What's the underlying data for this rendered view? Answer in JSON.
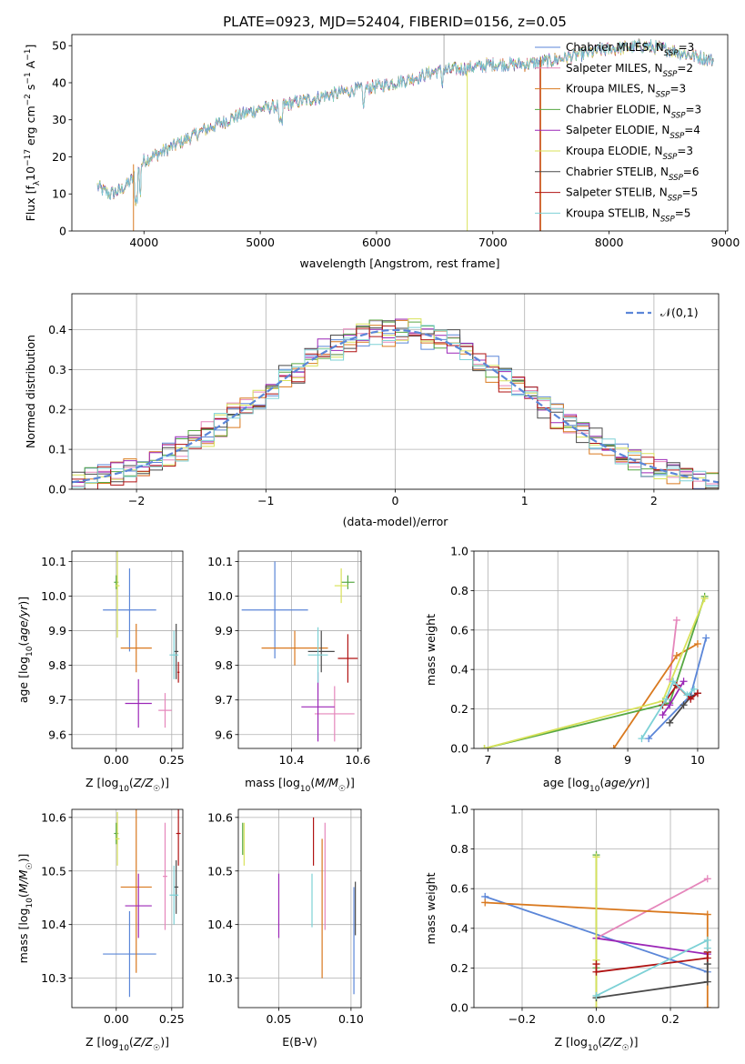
{
  "figure_title": "PLATE=0923, MJD=52404, FIBERID=0156, z=0.05",
  "models": [
    {
      "name": "Chabrier MILES",
      "nssp": "3",
      "color": "#5b86d8"
    },
    {
      "name": "Salpeter MILES",
      "nssp": "2",
      "color": "#e586bb"
    },
    {
      "name": "Kroupa MILES",
      "nssp": "3",
      "color": "#d9791f"
    },
    {
      "name": "Chabrier ELODIE",
      "nssp": "3",
      "color": "#57a843"
    },
    {
      "name": "Salpeter ELODIE",
      "nssp": "4",
      "color": "#9c27b7"
    },
    {
      "name": "Kroupa ELODIE",
      "nssp": "3",
      "color": "#d8e25a"
    },
    {
      "name": "Chabrier STELIB",
      "nssp": "6",
      "color": "#4a4a4a"
    },
    {
      "name": "Salpeter STELIB",
      "nssp": "5",
      "color": "#b01212"
    },
    {
      "name": "Kroupa STELIB",
      "nssp": "5",
      "color": "#7dd1d6"
    }
  ],
  "chart_data": [
    {
      "id": "spectrum",
      "type": "line",
      "title": "PLATE=0923, MJD=52404, FIBERID=0156, z=0.05",
      "xlabel": "wavelength [Angstrom, rest frame]",
      "ylabel": "Flux [f_λ 10^-17 erg cm^-2 s^-1 A^-1]",
      "xlim": [
        3380,
        9020
      ],
      "ylim": [
        0,
        53
      ],
      "xticks": [
        4000,
        5000,
        6000,
        7000,
        8000,
        9000
      ],
      "yticks": [
        0,
        10,
        20,
        30,
        40,
        50
      ],
      "legend": "upper-right",
      "grid": false,
      "continuum_x": [
        3600,
        3700,
        3800,
        3900,
        4000,
        4200,
        4500,
        4800,
        5000,
        5200,
        5500,
        5800,
        6000,
        6300,
        6500,
        6800,
        7000,
        7300,
        7500,
        7800,
        8000,
        8300,
        8500,
        8900
      ],
      "continuum_y": [
        12,
        10,
        11,
        14,
        19,
        22,
        27,
        31,
        33,
        34,
        36,
        38,
        39,
        41,
        43,
        44,
        45,
        45,
        46,
        48,
        49,
        50,
        49,
        46
      ]
    },
    {
      "id": "residuals",
      "type": "histogram",
      "xlabel": "(data-model)/error",
      "ylabel": "Normed distribution",
      "xlim": [
        -2.5,
        2.5
      ],
      "ylim": [
        0,
        0.49
      ],
      "xticks": [
        -2,
        -1,
        0,
        1,
        2
      ],
      "yticks": [
        0.0,
        0.1,
        0.2,
        0.3,
        0.4
      ],
      "legend": "upper-right",
      "legend_label": "𝒩(0,1)",
      "grid": true,
      "gaussian": {
        "mean": 0,
        "sigma": 1,
        "color": "#5b86d8"
      }
    },
    {
      "id": "age-vs-z",
      "type": "errorbar",
      "xlabel": "Z [log10(Z/Z☉)]",
      "ylabel": "age [log10(age/yr)]",
      "xlim": [
        -0.2,
        0.3
      ],
      "ylim": [
        9.56,
        10.13
      ],
      "xticks": [
        0.0,
        0.25
      ],
      "yticks": [
        9.6,
        9.7,
        9.8,
        9.9,
        10.0,
        10.1
      ],
      "grid": true,
      "points": [
        {
          "model": 0,
          "x": 0.06,
          "xerr": 0.12,
          "y": 9.96,
          "yerr": 0.12
        },
        {
          "model": 1,
          "x": 0.22,
          "xerr": 0.03,
          "y": 9.67,
          "yerr": 0.05
        },
        {
          "model": 2,
          "x": 0.09,
          "xerr": 0.07,
          "y": 9.85,
          "yerr": 0.07
        },
        {
          "model": 3,
          "x": 0.0,
          "xerr": 0.01,
          "y": 10.04,
          "yerr": 0.02
        },
        {
          "model": 4,
          "x": 0.1,
          "xerr": 0.06,
          "y": 9.69,
          "yerr": 0.07
        },
        {
          "model": 5,
          "x": 0.005,
          "xerr": 0.01,
          "y": 10.03,
          "yerr": 0.15
        },
        {
          "model": 6,
          "x": 0.27,
          "xerr": 0.01,
          "y": 9.84,
          "yerr": 0.08
        },
        {
          "model": 7,
          "x": 0.28,
          "xerr": 0.005,
          "y": 9.78,
          "yerr": 0.03
        },
        {
          "model": 8,
          "x": 0.26,
          "xerr": 0.02,
          "y": 9.83,
          "yerr": 0.07
        }
      ]
    },
    {
      "id": "age-vs-mass",
      "type": "errorbar",
      "xlabel": "mass [log10(M/M☉)]",
      "ylabel": "",
      "xlim": [
        10.24,
        10.61
      ],
      "ylim": [
        9.56,
        10.13
      ],
      "xticks": [
        10.4,
        10.6
      ],
      "yticks": [
        9.6,
        9.7,
        9.8,
        9.9,
        10.0,
        10.1
      ],
      "grid": true,
      "points": [
        {
          "model": 0,
          "x": 10.35,
          "xerr": 0.1,
          "y": 9.96,
          "yerr": 0.14
        },
        {
          "model": 1,
          "x": 10.53,
          "xerr": 0.06,
          "y": 9.66,
          "yerr": 0.08
        },
        {
          "model": 2,
          "x": 10.41,
          "xerr": 0.1,
          "y": 9.85,
          "yerr": 0.05
        },
        {
          "model": 3,
          "x": 10.57,
          "xerr": 0.02,
          "y": 10.04,
          "yerr": 0.02
        },
        {
          "model": 4,
          "x": 10.48,
          "xerr": 0.05,
          "y": 9.68,
          "yerr": 0.1
        },
        {
          "model": 5,
          "x": 10.55,
          "xerr": 0.02,
          "y": 10.03,
          "yerr": 0.05
        },
        {
          "model": 6,
          "x": 10.49,
          "xerr": 0.04,
          "y": 9.84,
          "yerr": 0.06
        },
        {
          "model": 7,
          "x": 10.57,
          "xerr": 0.03,
          "y": 9.82,
          "yerr": 0.07
        },
        {
          "model": 8,
          "x": 10.48,
          "xerr": 0.03,
          "y": 9.83,
          "yerr": 0.08
        }
      ]
    },
    {
      "id": "mass-weight-vs-age",
      "type": "line",
      "xlabel": "age [log10(age/yr)]",
      "ylabel": "mass weight",
      "xlim": [
        6.8,
        10.3
      ],
      "ylim": [
        0,
        1
      ],
      "xticks": [
        7,
        8,
        9,
        10
      ],
      "yticks": [
        0.0,
        0.2,
        0.4,
        0.6,
        0.8,
        1.0
      ],
      "grid": true,
      "series": [
        {
          "model": 0,
          "x": [
            9.3,
            9.9,
            10.12
          ],
          "y": [
            0.05,
            0.27,
            0.56
          ]
        },
        {
          "model": 1,
          "x": [
            9.6,
            9.7
          ],
          "y": [
            0.35,
            0.65
          ]
        },
        {
          "model": 2,
          "x": [
            8.8,
            9.7,
            10.0
          ],
          "y": [
            0.0,
            0.47,
            0.53
          ]
        },
        {
          "model": 3,
          "x": [
            6.95,
            9.6,
            10.1
          ],
          "y": [
            0.0,
            0.23,
            0.77
          ]
        },
        {
          "model": 4,
          "x": [
            9.5,
            9.6,
            9.8
          ],
          "y": [
            0.17,
            0.22,
            0.34
          ]
        },
        {
          "model": 5,
          "x": [
            6.95,
            9.5,
            10.1
          ],
          "y": [
            0.0,
            0.24,
            0.76
          ]
        },
        {
          "model": 6,
          "x": [
            9.6,
            9.8,
            9.9,
            10.0
          ],
          "y": [
            0.13,
            0.22,
            0.26,
            0.28
          ]
        },
        {
          "model": 7,
          "x": [
            9.5,
            9.7,
            9.9,
            10.0
          ],
          "y": [
            0.22,
            0.32,
            0.25,
            0.28
          ]
        },
        {
          "model": 8,
          "x": [
            9.2,
            9.55,
            9.65,
            9.85,
            9.95
          ],
          "y": [
            0.05,
            0.25,
            0.34,
            0.27,
            0.3
          ]
        }
      ]
    },
    {
      "id": "mass-vs-z",
      "type": "errorbar",
      "xlabel": "Z [log10(Z/Z☉)]",
      "ylabel": "mass [log10(M/M☉)]",
      "xlim": [
        -0.2,
        0.3
      ],
      "ylim": [
        10.245,
        10.615
      ],
      "xticks": [
        0.0,
        0.25
      ],
      "yticks": [
        10.3,
        10.4,
        10.5,
        10.6
      ],
      "grid": true,
      "points": [
        {
          "model": 0,
          "x": 0.06,
          "xerr": 0.12,
          "y": 10.345,
          "yerr": 0.08
        },
        {
          "model": 1,
          "x": 0.22,
          "xerr": 0.01,
          "y": 10.49,
          "yerr": 0.1
        },
        {
          "model": 2,
          "x": 0.09,
          "xerr": 0.07,
          "y": 10.47,
          "yerr": 0.16
        },
        {
          "model": 3,
          "x": 0.0,
          "xerr": 0.01,
          "y": 10.57,
          "yerr": 0.02
        },
        {
          "model": 4,
          "x": 0.1,
          "xerr": 0.06,
          "y": 10.435,
          "yerr": 0.06
        },
        {
          "model": 5,
          "x": 0.005,
          "xerr": 0.01,
          "y": 10.56,
          "yerr": 0.05
        },
        {
          "model": 6,
          "x": 0.27,
          "xerr": 0.01,
          "y": 10.47,
          "yerr": 0.05
        },
        {
          "model": 7,
          "x": 0.28,
          "xerr": 0.01,
          "y": 10.57,
          "yerr": 0.06
        },
        {
          "model": 8,
          "x": 0.26,
          "xerr": 0.02,
          "y": 10.455,
          "yerr": 0.055
        }
      ]
    },
    {
      "id": "mass-vs-ebv",
      "type": "errorbar",
      "xlabel": "E(B-V)",
      "ylabel": "",
      "xlim": [
        0.022,
        0.107
      ],
      "ylim": [
        10.245,
        10.615
      ],
      "xticks": [
        0.05,
        0.1
      ],
      "yticks": [
        10.3,
        10.4,
        10.5,
        10.6
      ],
      "grid": true,
      "points": [
        {
          "model": 0,
          "x": 0.102,
          "y": 10.37,
          "yerr": 0.1
        },
        {
          "model": 1,
          "x": 0.082,
          "y": 10.49,
          "yerr": 0.1
        },
        {
          "model": 2,
          "x": 0.08,
          "y": 10.43,
          "yerr": 0.13
        },
        {
          "model": 3,
          "x": 0.025,
          "y": 10.56,
          "yerr": 0.03
        },
        {
          "model": 4,
          "x": 0.05,
          "y": 10.435,
          "yerr": 0.06
        },
        {
          "model": 5,
          "x": 0.026,
          "y": 10.55,
          "yerr": 0.04
        },
        {
          "model": 6,
          "x": 0.103,
          "y": 10.43,
          "yerr": 0.05
        },
        {
          "model": 7,
          "x": 0.074,
          "y": 10.555,
          "yerr": 0.045
        },
        {
          "model": 8,
          "x": 0.073,
          "y": 10.445,
          "yerr": 0.05
        }
      ]
    },
    {
      "id": "mass-weight-vs-z",
      "type": "line",
      "xlabel": "Z [log10(Z/Z☉)]",
      "ylabel": "mass weight",
      "xlim": [
        -0.33,
        0.33
      ],
      "ylim": [
        0,
        1
      ],
      "xticks": [
        -0.2,
        0.0,
        0.2
      ],
      "yticks": [
        0.0,
        0.2,
        0.4,
        0.6,
        0.8,
        1.0
      ],
      "grid": true,
      "series": [
        {
          "model": 0,
          "x": [
            -0.3,
            0.3
          ],
          "y": [
            0.56,
            0.18
          ]
        },
        {
          "model": 1,
          "x": [
            0.0,
            0.3
          ],
          "y": [
            0.35,
            0.65
          ]
        },
        {
          "model": 2,
          "x": [
            -0.3,
            0.3,
            0.3
          ],
          "y": [
            0.53,
            0.47,
            0.0
          ]
        },
        {
          "model": 3,
          "x": [
            0.0,
            0.0,
            0.0
          ],
          "y": [
            0.05,
            0.77,
            0.2
          ]
        },
        {
          "model": 4,
          "x": [
            0.0,
            0.3
          ],
          "y": [
            0.35,
            0.27
          ]
        },
        {
          "model": 5,
          "x": [
            0.0,
            0.0,
            0.0
          ],
          "y": [
            0.0,
            0.76,
            0.24
          ]
        },
        {
          "model": 6,
          "x": [
            0.0,
            0.3,
            0.3,
            0.3
          ],
          "y": [
            0.05,
            0.13,
            0.22,
            0.28
          ]
        },
        {
          "model": 7,
          "x": [
            0.0,
            0.0,
            0.3,
            0.3
          ],
          "y": [
            0.22,
            0.18,
            0.25,
            0.28
          ]
        },
        {
          "model": 8,
          "x": [
            0.0,
            0.3,
            0.3
          ],
          "y": [
            0.06,
            0.34,
            0.3
          ]
        }
      ]
    }
  ]
}
